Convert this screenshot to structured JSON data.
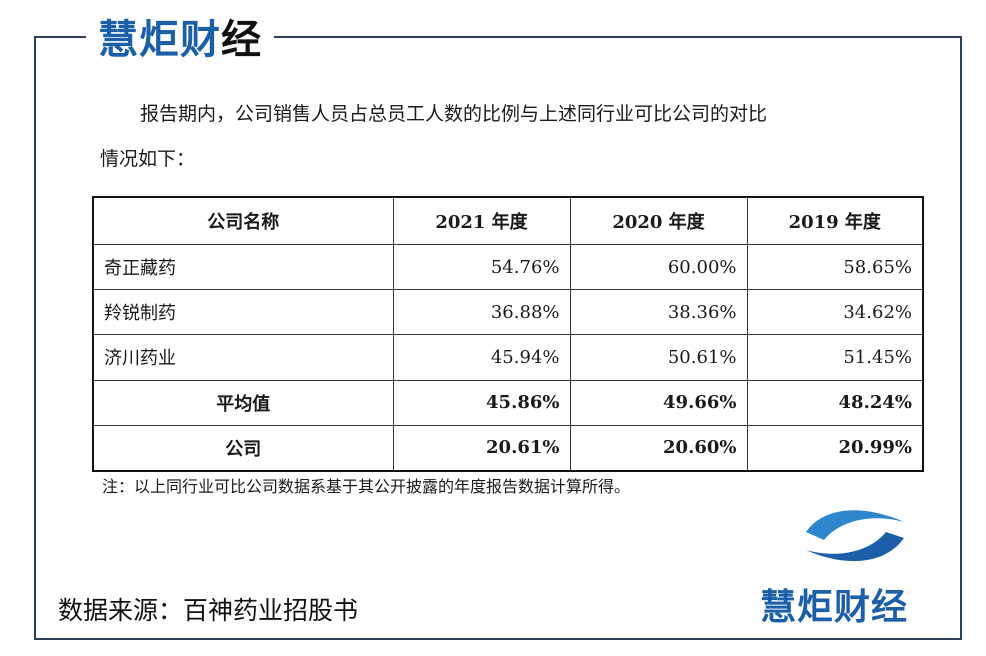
{
  "brand": {
    "header_logo_main": "慧炬财",
    "header_logo_accent": "经",
    "footer_logo_text": "慧炬财经",
    "color": "#1b5fa8"
  },
  "intro": {
    "line1": "报告期内，公司销售人员占总员工人数的比例与上述同行业可比公司的对比",
    "line2": "情况如下："
  },
  "table": {
    "headers": [
      "公司名称",
      "2021 年度",
      "2020 年度",
      "2019 年度"
    ],
    "rows": [
      {
        "name": "奇正藏药",
        "values": [
          "54.76%",
          "60.00%",
          "58.65%"
        ]
      },
      {
        "name": "羚锐制药",
        "values": [
          "36.88%",
          "38.36%",
          "34.62%"
        ]
      },
      {
        "name": "济川药业",
        "values": [
          "45.94%",
          "50.61%",
          "51.45%"
        ]
      },
      {
        "name": "平均值",
        "values": [
          "45.86%",
          "49.66%",
          "48.24%"
        ]
      },
      {
        "name": "公司",
        "values": [
          "20.61%",
          "20.60%",
          "20.99%"
        ]
      }
    ]
  },
  "note": "注：以上同行业可比公司数据系基于其公开披露的年度报告数据计算所得。",
  "source": "数据来源：百神药业招股书"
}
